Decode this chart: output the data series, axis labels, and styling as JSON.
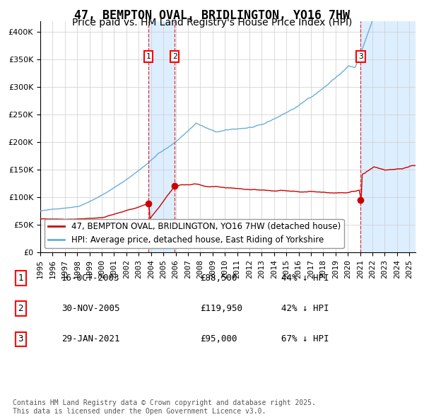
{
  "title": "47, BEMPTON OVAL, BRIDLINGTON, YO16 7HW",
  "subtitle": "Price paid vs. HM Land Registry's House Price Index (HPI)",
  "red_label": "47, BEMPTON OVAL, BRIDLINGTON, YO16 7HW (detached house)",
  "blue_label": "HPI: Average price, detached house, East Riding of Yorkshire",
  "transactions": [
    {
      "num": 1,
      "date": "16-OCT-2003",
      "price": 88500,
      "price_str": "£88,500",
      "pct": "44%",
      "dir": "↓"
    },
    {
      "num": 2,
      "date": "30-NOV-2005",
      "price": 119950,
      "price_str": "£119,950",
      "pct": "42%",
      "dir": "↓"
    },
    {
      "num": 3,
      "date": "29-JAN-2021",
      "price": 95000,
      "price_str": "£95,000",
      "pct": "67%",
      "dir": "↓"
    }
  ],
  "footnote": "Contains HM Land Registry data © Crown copyright and database right 2025.\nThis data is licensed under the Open Government Licence v3.0.",
  "xlim_start": 1995.0,
  "xlim_end": 2025.5,
  "ylim_min": 0,
  "ylim_max": 420000,
  "red_color": "#cc0000",
  "blue_color": "#6baed6",
  "highlight_color": "#ddeeff",
  "dashed_color": "#dd3333",
  "grid_color": "#cccccc",
  "bg_color": "#ffffff",
  "title_fontsize": 12,
  "subtitle_fontsize": 10,
  "tick_fontsize": 8,
  "legend_fontsize": 8.5,
  "table_fontsize": 9,
  "footnote_fontsize": 7
}
